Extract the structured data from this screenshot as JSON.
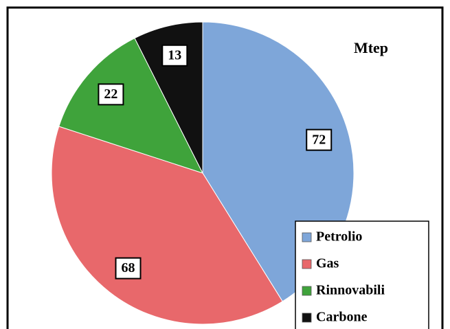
{
  "chart_data": {
    "type": "pie",
    "title": "Mtep",
    "categories": [
      "Petrolio",
      "Gas",
      "Rinnovabili",
      "Carbone"
    ],
    "values": [
      72,
      68,
      22,
      13
    ],
    "colors": [
      "#7ea6d9",
      "#e8686b",
      "#3fa33b",
      "#111111"
    ],
    "legend": "bottom-right"
  }
}
